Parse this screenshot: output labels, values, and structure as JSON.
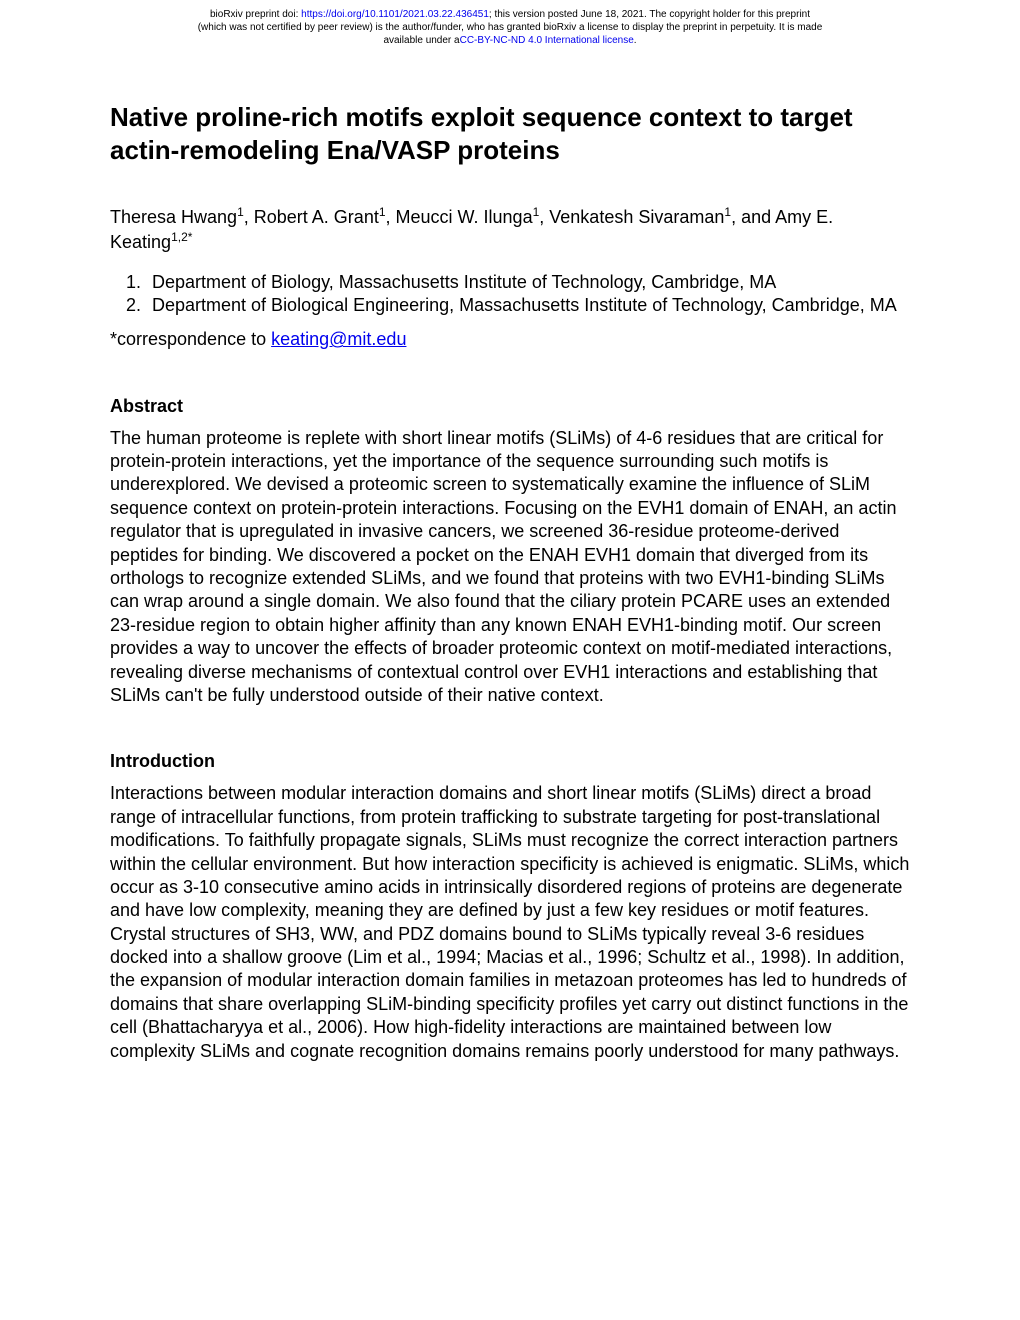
{
  "header": {
    "line1_prefix": "bioRxiv preprint doi: ",
    "doi_url": "https://doi.org/10.1101/2021.03.22.436451",
    "line1_suffix": "; this version posted June 18, 2021. The copyright holder for this preprint",
    "line2": "(which was not certified by peer review) is the author/funder, who has granted bioRxiv a license to display the preprint in perpetuity. It is made",
    "line3_prefix": "available under a",
    "license_text": "CC-BY-NC-ND 4.0 International license",
    "line3_suffix": "."
  },
  "title": "Native proline-rich motifs exploit sequence context to target actin-remodeling Ena/VASP proteins",
  "authors": {
    "a1_name": "Theresa Hwang",
    "a1_sup": "1",
    "a2_name": ", Robert A. Grant",
    "a2_sup": "1",
    "a3_name": ", Meucci W. Ilunga",
    "a3_sup": "1",
    "a4_name": ", Venkatesh Sivaraman",
    "a4_sup": "1",
    "a5_name": ", and Amy E. Keating",
    "a5_sup": "1,2*"
  },
  "affiliations": {
    "aff1": "Department of Biology, Massachusetts Institute of Technology, Cambridge, MA",
    "aff2": "Department of Biological Engineering, Massachusetts Institute of Technology, Cambridge, MA"
  },
  "correspondence": {
    "prefix": "*correspondence to ",
    "email": "keating@mit.edu"
  },
  "abstract": {
    "heading": "Abstract",
    "text": "The human proteome is replete with short linear motifs (SLiMs) of 4-6 residues that are critical for protein-protein interactions, yet the importance of the sequence surrounding such motifs is underexplored. We devised a proteomic screen to systematically examine the influence of SLiM sequence context on protein-protein interactions. Focusing on the EVH1 domain of ENAH, an actin regulator that is upregulated in invasive cancers, we screened 36-residue proteome-derived peptides for binding. We discovered a pocket on the ENAH EVH1 domain that diverged from its orthologs to recognize extended SLiMs, and we found that proteins with two EVH1-binding SLiMs can wrap around a single domain. We also found that the ciliary protein PCARE uses an extended 23-residue region to obtain higher affinity than any known ENAH EVH1-binding motif. Our screen provides a way to uncover the effects of broader proteomic context on motif-mediated interactions, revealing diverse mechanisms of contextual control over EVH1 interactions and establishing that SLiMs can't be fully understood outside of their native context."
  },
  "introduction": {
    "heading": "Introduction",
    "text": "Interactions between modular interaction domains and short linear motifs (SLiMs) direct a broad range of intracellular functions, from protein trafficking to substrate targeting for post-translational modifications. To faithfully propagate signals, SLiMs must recognize the correct interaction partners within the cellular environment. But how interaction specificity is achieved is enigmatic. SLiMs, which occur as 3-10 consecutive amino acids in intrinsically disordered regions of proteins are degenerate and have low complexity, meaning they are defined by just a few key residues or motif features. Crystal structures of SH3, WW, and PDZ domains bound to SLiMs typically reveal 3-6 residues docked into a shallow groove (Lim et al., 1994; Macias et al., 1996; Schultz et al., 1998). In addition, the expansion of modular interaction domain families in metazoan proteomes has led to hundreds of domains that share overlapping SLiM-binding specificity profiles yet carry out distinct functions in the cell (Bhattacharyya et al., 2006). How high-fidelity interactions are maintained between low complexity SLiMs and cognate recognition domains remains poorly understood for many pathways."
  }
}
